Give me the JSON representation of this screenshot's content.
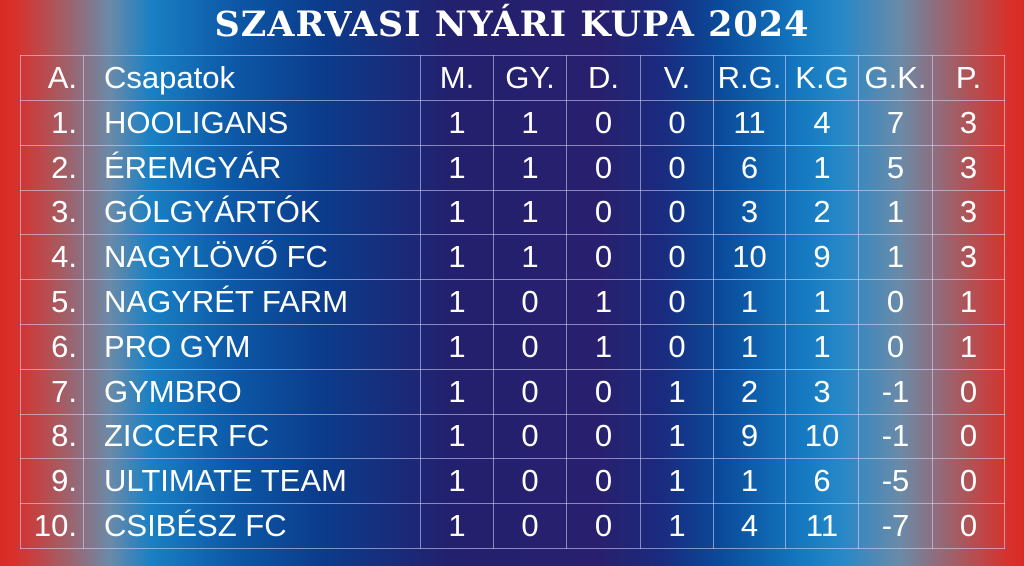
{
  "title": "SZARVASI NYÁRI KUPA 2024",
  "headers": [
    "A.",
    "Csapatok",
    "M.",
    "GY.",
    "D.",
    "V.",
    "R.G.",
    "K.G",
    "G.K.",
    "P."
  ],
  "rows": [
    [
      "1.",
      "HOOLIGANS",
      "1",
      "1",
      "0",
      "0",
      "11",
      "4",
      "7",
      "3"
    ],
    [
      "2.",
      "ÉREMGYÁR",
      "1",
      "1",
      "0",
      "0",
      "6",
      "1",
      "5",
      "3"
    ],
    [
      "3.",
      "GÓLGYÁRTÓK",
      "1",
      "1",
      "0",
      "0",
      "3",
      "2",
      "1",
      "3"
    ],
    [
      "4.",
      "NAGYLÖVŐ FC",
      "1",
      "1",
      "0",
      "0",
      "10",
      "9",
      "1",
      "3"
    ],
    [
      "5.",
      "NAGYRÉT FARM",
      "1",
      "0",
      "1",
      "0",
      "1",
      "1",
      "0",
      "1"
    ],
    [
      "6.",
      "PRO GYM",
      "1",
      "0",
      "1",
      "0",
      "1",
      "1",
      "0",
      "1"
    ],
    [
      "7.",
      "GYMBRO",
      "1",
      "0",
      "0",
      "1",
      "2",
      "3",
      "-1",
      "0"
    ],
    [
      "8.",
      "ZICCER FC",
      "1",
      "0",
      "0",
      "1",
      "9",
      "10",
      "-1",
      "0"
    ],
    [
      "9.",
      "ULTIMATE TEAM",
      "1",
      "0",
      "0",
      "1",
      "1",
      "6",
      "-5",
      "0"
    ],
    [
      "10.",
      "CSIBÉSZ FC",
      "1",
      "0",
      "0",
      "1",
      "4",
      "11",
      "-7",
      "0"
    ]
  ]
}
